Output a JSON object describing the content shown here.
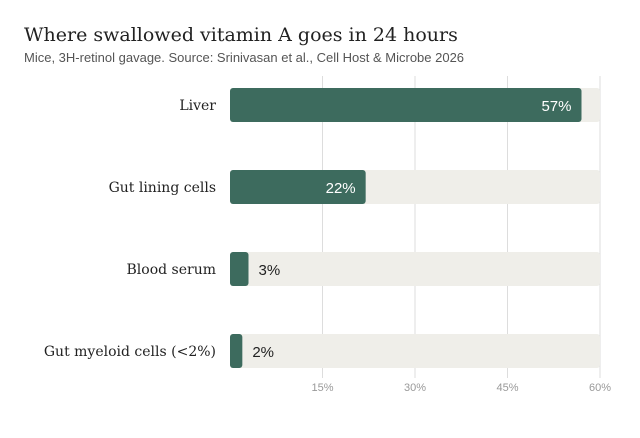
{
  "chart_data": {
    "type": "bar",
    "orientation": "horizontal",
    "title": "Where swallowed vitamin A goes in 24 hours",
    "subtitle": "Mice, 3H-retinol gavage. Source: Srinivasan et al., Cell Host & Microbe 2026",
    "categories": [
      "Liver",
      "Gut lining cells",
      "Blood serum",
      "Gut myeloid cells (<2%)"
    ],
    "values": [
      57,
      22,
      3,
      2
    ],
    "value_labels": [
      "57%",
      "22%",
      "3%",
      "2%"
    ],
    "xlim": [
      0,
      60
    ],
    "xticks": [
      15,
      30,
      45,
      60
    ],
    "xtick_labels": [
      "15%",
      "30%",
      "45%",
      "60%"
    ],
    "grid": "vertical",
    "colors": {
      "bar": "#3d6b5e",
      "track": "#efeee9",
      "gridline": "#dddddd",
      "label_inside": "#ffffff",
      "label_outside": "#222222"
    }
  }
}
